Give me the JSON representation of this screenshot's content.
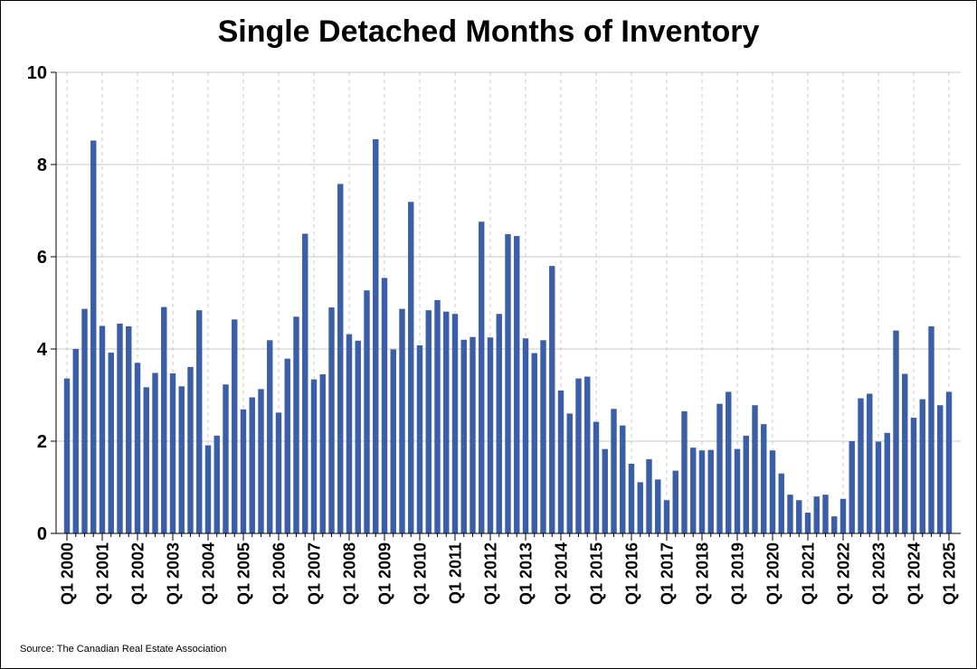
{
  "chart_data": {
    "type": "bar",
    "title": "Single Detached Months of Inventory",
    "xlabel": "",
    "ylabel": "",
    "ylim": [
      0,
      10
    ],
    "yticks": [
      0,
      2,
      4,
      6,
      8,
      10
    ],
    "grid": true,
    "legend": "none",
    "bar_color": "#3a5ea8",
    "x_tick_labels": [
      "Q1 2000",
      "Q1 2001",
      "Q1 2002",
      "Q1 2003",
      "Q1 2004",
      "Q1 2005",
      "Q1 2006",
      "Q1 2007",
      "Q1 2008",
      "Q1 2009",
      "Q1 2010",
      "Q1 2011",
      "Q1 2012",
      "Q1 2013",
      "Q1 2014",
      "Q1 2015",
      "Q1 2016",
      "Q1 2017",
      "Q1 2018",
      "Q1 2019",
      "Q1 2020",
      "Q1 2021",
      "Q1 2022",
      "Q1 2023",
      "Q1 2024",
      "Q1 2025"
    ],
    "values": [
      3.36,
      4.0,
      4.87,
      8.52,
      4.5,
      3.92,
      4.55,
      4.49,
      3.7,
      3.17,
      3.48,
      4.91,
      3.47,
      3.19,
      3.61,
      4.84,
      1.91,
      2.12,
      3.23,
      4.64,
      2.69,
      2.95,
      3.13,
      4.19,
      2.62,
      3.79,
      4.7,
      6.5,
      3.34,
      3.45,
      4.9,
      7.58,
      4.32,
      4.18,
      5.27,
      8.55,
      5.54,
      3.99,
      4.87,
      7.19,
      4.08,
      4.84,
      5.06,
      4.81,
      4.76,
      4.2,
      4.26,
      6.76,
      4.25,
      4.76,
      6.49,
      6.45,
      4.23,
      3.91,
      4.19,
      5.8,
      3.1,
      2.6,
      3.36,
      3.4,
      2.42,
      1.83,
      2.7,
      2.34,
      1.51,
      1.11,
      1.61,
      1.17,
      0.72,
      1.36,
      2.65,
      1.86,
      1.8,
      1.81,
      2.81,
      3.07,
      1.83,
      2.12,
      2.78,
      2.37,
      1.8,
      1.3,
      0.84,
      0.72,
      0.45,
      0.8,
      0.84,
      0.37,
      0.75,
      2.0,
      2.93,
      3.03,
      1.99,
      2.18,
      4.4,
      3.46,
      2.51,
      2.91,
      4.49,
      2.78,
      3.07
    ]
  },
  "footer": {
    "source": "Source: The Canadian Real Estate Association"
  }
}
